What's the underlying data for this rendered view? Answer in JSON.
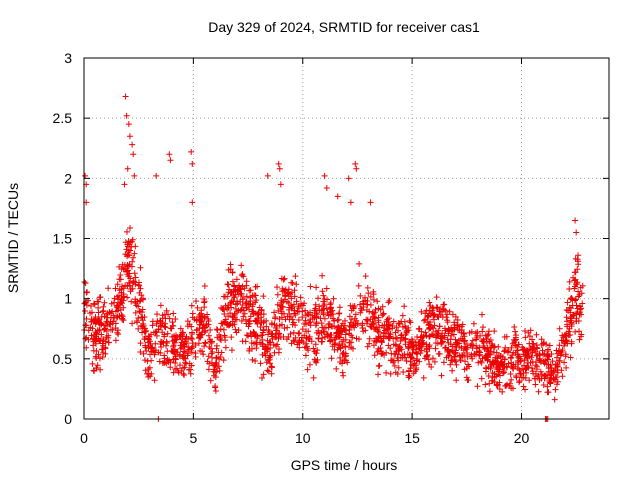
{
  "chart_data": {
    "type": "scatter",
    "title": "Day 329 of 2024, SRMTID for receiver cas1",
    "xlabel": "GPS time / hours",
    "ylabel": "SRMTID / TECUs",
    "xlim": [
      0,
      24
    ],
    "ylim": [
      0,
      3
    ],
    "xticks": [
      0,
      5,
      10,
      15,
      20
    ],
    "xtick_labels": [
      "0",
      "5",
      "10",
      "15",
      "20"
    ],
    "yticks": [
      0,
      0.5,
      1,
      1.5,
      2,
      2.5,
      3
    ],
    "ytick_labels": [
      "0",
      "0.5",
      "1",
      "1.5",
      "2",
      "2.5",
      "3"
    ],
    "grid": true,
    "marker": "+",
    "color": "#ee0000",
    "trend_x": [
      0,
      0.5,
      1,
      1.5,
      2,
      2.5,
      3,
      3.5,
      4,
      4.5,
      5,
      5.5,
      6,
      6.5,
      7,
      7.5,
      8,
      8.5,
      9,
      9.5,
      10,
      10.5,
      11,
      11.5,
      12,
      12.5,
      13,
      13.5,
      14,
      14.5,
      15,
      15.5,
      16,
      16.5,
      17,
      17.5,
      18,
      18.5,
      19,
      19.5,
      20,
      20.5,
      21,
      21.5,
      22,
      22.5,
      22.8
    ],
    "trend_y": [
      0.9,
      0.7,
      0.75,
      0.9,
      1.3,
      1.0,
      0.5,
      0.8,
      0.6,
      0.55,
      0.7,
      0.8,
      0.4,
      0.9,
      1.0,
      0.9,
      0.8,
      0.55,
      0.9,
      0.95,
      0.8,
      0.7,
      0.9,
      0.7,
      0.6,
      0.9,
      0.9,
      0.7,
      0.7,
      0.6,
      0.55,
      0.65,
      0.75,
      0.7,
      0.6,
      0.55,
      0.6,
      0.5,
      0.45,
      0.5,
      0.5,
      0.55,
      0.45,
      0.4,
      0.6,
      1.1,
      0.9
    ],
    "spread": 0.28,
    "points_per_hour": 95,
    "outliers": [
      {
        "x": 0.05,
        "y": 2.02
      },
      {
        "x": 0.1,
        "y": 1.95
      },
      {
        "x": 0.1,
        "y": 1.8
      },
      {
        "x": 1.9,
        "y": 2.68
      },
      {
        "x": 1.95,
        "y": 2.52
      },
      {
        "x": 2.05,
        "y": 2.45
      },
      {
        "x": 2.1,
        "y": 2.35
      },
      {
        "x": 2.2,
        "y": 2.28
      },
      {
        "x": 2.25,
        "y": 2.2
      },
      {
        "x": 2.0,
        "y": 2.08
      },
      {
        "x": 2.3,
        "y": 2.02
      },
      {
        "x": 1.85,
        "y": 1.95
      },
      {
        "x": 3.9,
        "y": 2.2
      },
      {
        "x": 3.95,
        "y": 2.15
      },
      {
        "x": 3.3,
        "y": 2.02
      },
      {
        "x": 4.9,
        "y": 2.22
      },
      {
        "x": 4.95,
        "y": 2.12
      },
      {
        "x": 4.95,
        "y": 1.8
      },
      {
        "x": 8.4,
        "y": 2.02
      },
      {
        "x": 8.9,
        "y": 2.12
      },
      {
        "x": 8.95,
        "y": 2.08
      },
      {
        "x": 9.0,
        "y": 1.95
      },
      {
        "x": 11.0,
        "y": 2.02
      },
      {
        "x": 11.1,
        "y": 1.92
      },
      {
        "x": 11.6,
        "y": 1.85
      },
      {
        "x": 12.1,
        "y": 2.0
      },
      {
        "x": 12.4,
        "y": 2.12
      },
      {
        "x": 12.45,
        "y": 2.08
      },
      {
        "x": 12.2,
        "y": 1.8
      },
      {
        "x": 13.1,
        "y": 1.8
      },
      {
        "x": 22.45,
        "y": 1.65
      },
      {
        "x": 22.5,
        "y": 1.55
      },
      {
        "x": 3.4,
        "y": 0.0
      },
      {
        "x": 21.1,
        "y": 0.0
      },
      {
        "x": 21.15,
        "y": 0.0
      },
      {
        "x": 21.2,
        "y": 0.0
      }
    ]
  }
}
